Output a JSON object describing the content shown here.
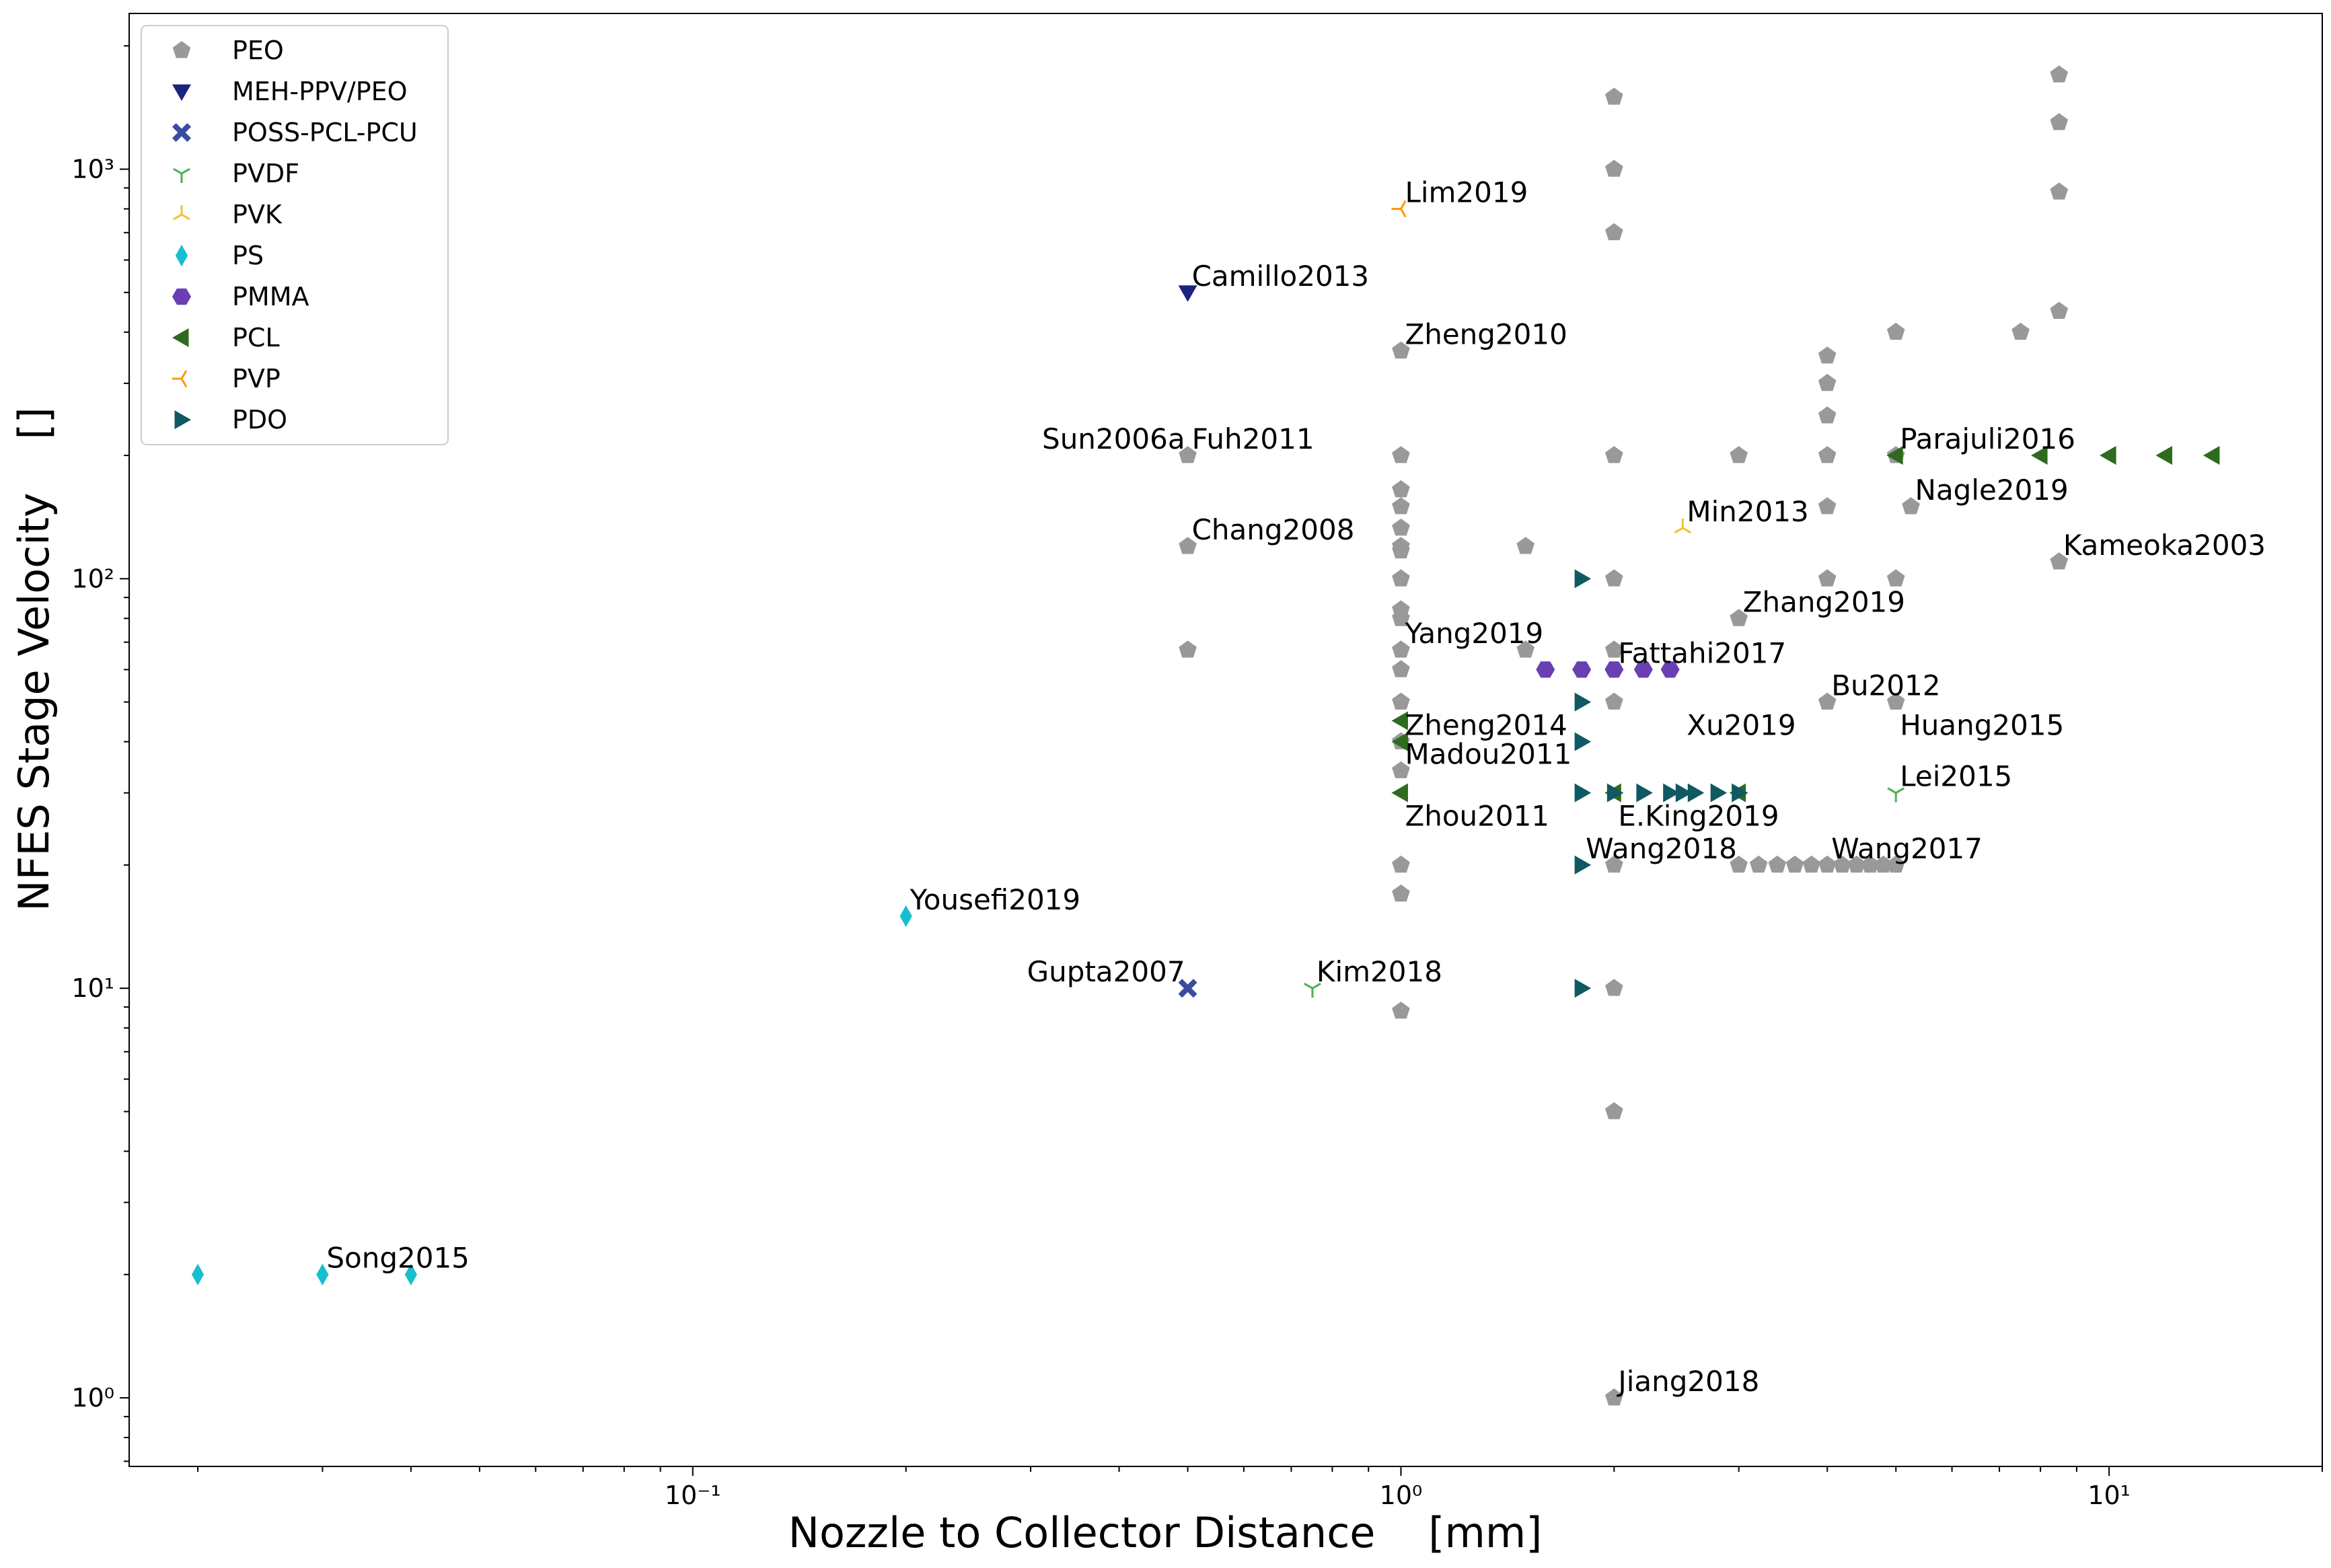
{
  "chart_data": {
    "type": "scatter",
    "xlabel": "Nozzle to Collector Distance    [mm]",
    "ylabel": "NFES Stage Velocity    []",
    "x_scale": "log",
    "y_scale": "log",
    "xlim": [
      0.016,
      20
    ],
    "ylim": [
      0.68,
      2400
    ],
    "grid": false,
    "legend_position": "top-left",
    "x_ticks": [
      {
        "value": 0.1,
        "label": "10⁻¹"
      },
      {
        "value": 1,
        "label": "10⁰"
      },
      {
        "value": 10,
        "label": "10¹"
      }
    ],
    "y_ticks": [
      {
        "value": 1,
        "label": "10⁰"
      },
      {
        "value": 10,
        "label": "10¹"
      },
      {
        "value": 100,
        "label": "10²"
      },
      {
        "value": 1000,
        "label": "10³"
      }
    ],
    "series": [
      {
        "name": "PEO",
        "marker": "pentagon",
        "color": "#999999",
        "points": [
          [
            0.5,
            200
          ],
          [
            0.5,
            120
          ],
          [
            0.5,
            67
          ],
          [
            1,
            360
          ],
          [
            1,
            200
          ],
          [
            1,
            165
          ],
          [
            1,
            150
          ],
          [
            1,
            133
          ],
          [
            1,
            120
          ],
          [
            1,
            117
          ],
          [
            1,
            100
          ],
          [
            1,
            84
          ],
          [
            1,
            80
          ],
          [
            1,
            67
          ],
          [
            1,
            60
          ],
          [
            1,
            50
          ],
          [
            1,
            40
          ],
          [
            1,
            34
          ],
          [
            1,
            20
          ],
          [
            1,
            17
          ],
          [
            1,
            8.8
          ],
          [
            1.5,
            120
          ],
          [
            1.5,
            67
          ],
          [
            2,
            1500
          ],
          [
            2,
            1000
          ],
          [
            2,
            700
          ],
          [
            2,
            200
          ],
          [
            2,
            100
          ],
          [
            2,
            67
          ],
          [
            2,
            50
          ],
          [
            2,
            20
          ],
          [
            2,
            10
          ],
          [
            2,
            5
          ],
          [
            2,
            1
          ],
          [
            3,
            200
          ],
          [
            3,
            80
          ],
          [
            3,
            20
          ],
          [
            3.2,
            20
          ],
          [
            3.4,
            20
          ],
          [
            3.6,
            20
          ],
          [
            3.8,
            20
          ],
          [
            4,
            20
          ],
          [
            4.2,
            20
          ],
          [
            4.4,
            20
          ],
          [
            4.6,
            20
          ],
          [
            4.8,
            20
          ],
          [
            5,
            20
          ],
          [
            4,
            350
          ],
          [
            4,
            300
          ],
          [
            4,
            250
          ],
          [
            4,
            200
          ],
          [
            4,
            150
          ],
          [
            4,
            100
          ],
          [
            4,
            50
          ],
          [
            5,
            400
          ],
          [
            5,
            200
          ],
          [
            5,
            100
          ],
          [
            5,
            50
          ],
          [
            5.25,
            150
          ],
          [
            7.5,
            400
          ],
          [
            8.5,
            1700
          ],
          [
            8.5,
            1300
          ],
          [
            8.5,
            880
          ],
          [
            8.5,
            450
          ],
          [
            8.5,
            110
          ]
        ]
      },
      {
        "name": "MEH-PPV/PEO",
        "marker": "triangle-down",
        "color": "#1a237e",
        "points": [
          [
            0.5,
            500
          ]
        ]
      },
      {
        "name": "POSS-PCL-PCU",
        "marker": "x-filled",
        "color": "#3a4ca0",
        "points": [
          [
            0.5,
            10
          ]
        ]
      },
      {
        "name": "PVDF",
        "marker": "tri-down",
        "color": "#4caf50",
        "points": [
          [
            0.75,
            10
          ],
          [
            5,
            30
          ]
        ]
      },
      {
        "name": "PVK",
        "marker": "tri-up",
        "color": "#f2c12e",
        "points": [
          [
            2.5,
            133
          ]
        ]
      },
      {
        "name": "PS",
        "marker": "thin-diamond",
        "color": "#17becf",
        "points": [
          [
            0.02,
            2
          ],
          [
            0.03,
            2
          ],
          [
            0.04,
            2
          ],
          [
            0.2,
            15
          ]
        ]
      },
      {
        "name": "PMMA",
        "marker": "hexagon",
        "color": "#6a3fb4",
        "points": [
          [
            1.6,
            60
          ],
          [
            1.8,
            60
          ],
          [
            2,
            60
          ],
          [
            2.2,
            60
          ],
          [
            2.4,
            60
          ]
        ]
      },
      {
        "name": "PCL",
        "marker": "triangle-left",
        "color": "#2e6b1f",
        "points": [
          [
            1,
            45
          ],
          [
            1,
            40
          ],
          [
            1,
            30
          ],
          [
            2,
            30
          ],
          [
            3,
            30
          ],
          [
            5,
            200
          ],
          [
            8,
            200
          ],
          [
            10,
            200
          ],
          [
            12,
            200
          ],
          [
            14,
            200
          ]
        ]
      },
      {
        "name": "PVP",
        "marker": "tri-left",
        "color": "#ff9800",
        "points": [
          [
            1,
            800
          ]
        ]
      },
      {
        "name": "PDO",
        "marker": "triangle-right",
        "color": "#0f5963",
        "points": [
          [
            1.8,
            100
          ],
          [
            1.8,
            50
          ],
          [
            1.8,
            40
          ],
          [
            1.8,
            30
          ],
          [
            1.8,
            20
          ],
          [
            1.8,
            10
          ],
          [
            2,
            30
          ],
          [
            2.2,
            30
          ],
          [
            2.4,
            30
          ],
          [
            2.5,
            30
          ],
          [
            2.6,
            30
          ],
          [
            2.8,
            30
          ],
          [
            3,
            30
          ]
        ]
      }
    ],
    "annotations": [
      {
        "text": "Lim2019",
        "x": 1.0,
        "y": 800,
        "anchor": "start"
      },
      {
        "text": "Camillo2013",
        "x": 0.5,
        "y": 500,
        "anchor": "start"
      },
      {
        "text": "Zheng2010",
        "x": 1.0,
        "y": 360,
        "anchor": "start"
      },
      {
        "text": "Fuh2011",
        "x": 0.5,
        "y": 200,
        "anchor": "start"
      },
      {
        "text": "Sun2006a",
        "x": 0.5,
        "y": 200,
        "anchor": "end"
      },
      {
        "text": "Chang2008",
        "x": 0.5,
        "y": 120,
        "anchor": "start"
      },
      {
        "text": "Min2013",
        "x": 2.5,
        "y": 133,
        "anchor": "start"
      },
      {
        "text": "Parajuli2016",
        "x": 5.0,
        "y": 200,
        "anchor": "start"
      },
      {
        "text": "Nagle2019",
        "x": 5.25,
        "y": 150,
        "anchor": "start"
      },
      {
        "text": "Kameoka2003",
        "x": 8.5,
        "y": 110,
        "anchor": "start"
      },
      {
        "text": "Zhang2019",
        "x": 3.0,
        "y": 80,
        "anchor": "start"
      },
      {
        "text": "Yang2019",
        "x": 1.0,
        "y": 67,
        "anchor": "start"
      },
      {
        "text": "Fattahi2017",
        "x": 2.0,
        "y": 60,
        "anchor": "start"
      },
      {
        "text": "Bu2012",
        "x": 4.0,
        "y": 50,
        "anchor": "start"
      },
      {
        "text": "Zheng2014",
        "x": 1.0,
        "y": 40,
        "anchor": "start"
      },
      {
        "text": "Xu2019",
        "x": 2.5,
        "y": 40,
        "anchor": "start"
      },
      {
        "text": "Huang2015",
        "x": 5.0,
        "y": 40,
        "anchor": "start"
      },
      {
        "text": "Madou2011",
        "x": 1.0,
        "y": 34,
        "anchor": "start"
      },
      {
        "text": "Lei2015",
        "x": 5.0,
        "y": 30,
        "anchor": "start"
      },
      {
        "text": "Zhou2011",
        "x": 1.0,
        "y": 24,
        "anchor": "start"
      },
      {
        "text": "E.King2019",
        "x": 2.0,
        "y": 24,
        "anchor": "start"
      },
      {
        "text": "Wang2018",
        "x": 1.8,
        "y": 20,
        "anchor": "start"
      },
      {
        "text": "Wang2017",
        "x": 4.0,
        "y": 20,
        "anchor": "start"
      },
      {
        "text": "Yousefi2019",
        "x": 0.2,
        "y": 15,
        "anchor": "start"
      },
      {
        "text": "Gupta2007",
        "x": 0.5,
        "y": 10,
        "anchor": "end"
      },
      {
        "text": "Kim2018",
        "x": 0.75,
        "y": 10,
        "anchor": "start"
      },
      {
        "text": "Song2015",
        "x": 0.03,
        "y": 2,
        "anchor": "start"
      },
      {
        "text": "Jiang2018",
        "x": 2.0,
        "y": 1,
        "anchor": "start"
      }
    ]
  }
}
